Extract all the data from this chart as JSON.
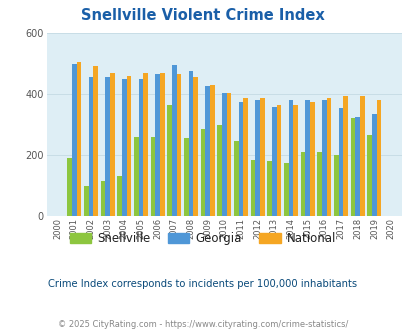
{
  "title": "Snellville Violent Crime Index",
  "years": [
    2000,
    2001,
    2002,
    2003,
    2004,
    2005,
    2006,
    2007,
    2008,
    2009,
    2010,
    2011,
    2012,
    2013,
    2014,
    2015,
    2016,
    2017,
    2018,
    2019,
    2020
  ],
  "snellville": [
    0,
    190,
    100,
    115,
    130,
    260,
    260,
    365,
    255,
    285,
    300,
    245,
    185,
    180,
    175,
    210,
    210,
    200,
    320,
    265,
    0
  ],
  "georgia": [
    0,
    500,
    455,
    455,
    450,
    450,
    465,
    495,
    475,
    425,
    402,
    375,
    382,
    357,
    380,
    380,
    382,
    355,
    325,
    335,
    0
  ],
  "national": [
    0,
    505,
    492,
    470,
    460,
    469,
    470,
    467,
    455,
    430,
    405,
    387,
    386,
    365,
    365,
    374,
    386,
    394,
    395,
    379,
    0
  ],
  "snellville_color": "#8dc63f",
  "georgia_color": "#4f97d7",
  "national_color": "#f5a623",
  "bg_color": "#deeef5",
  "title_color": "#1a5fa8",
  "ylim": [
    0,
    600
  ],
  "yticks": [
    0,
    200,
    400,
    600
  ],
  "subtitle": "Crime Index corresponds to incidents per 100,000 inhabitants",
  "footer": "© 2025 CityRating.com - https://www.cityrating.com/crime-statistics/",
  "bar_width": 0.28,
  "grid_color": "#c8dde6"
}
